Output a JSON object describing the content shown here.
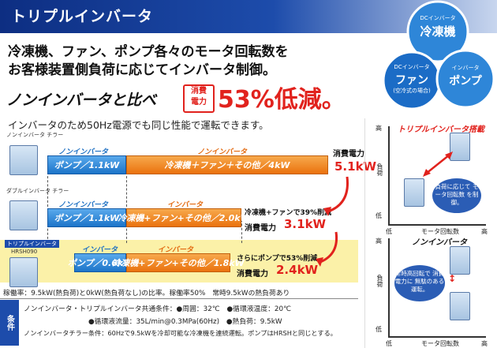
{
  "header": {
    "title": "トリプルインバータ"
  },
  "headline": {
    "line1": "冷凍機、ファン、ポンプ各々のモータ回転数を",
    "line2": "お客様装置側負荷に応じてインバータ制御。"
  },
  "comparison": {
    "lead": "ノンインバータと比べ",
    "badge_line1": "消費",
    "badge_line2": "電力",
    "percent": "53%低減。"
  },
  "subline": "インバータのため50Hz電源でも同じ性能で運転できます。",
  "circles": {
    "freezer_small": "DCインバータ",
    "freezer_main": "冷凍機",
    "fan_small": "DCインバータ",
    "fan_main": "ファン",
    "fan_note": "(空冷式の場合)",
    "pump_small": "インバータ",
    "pump_main": "ポンプ"
  },
  "rows": [
    {
      "device_label": "ノンインバータ チラー",
      "blue_top": "ノンインバータ",
      "blue_text": "ポンプ／1.1kW",
      "orange_top": "ノンインバータ",
      "orange_text": "冷凍機＋ファン＋その他／4kW",
      "power_label": "消費電力",
      "power_value": "5.1kW"
    },
    {
      "device_label": "ダブルインバータ チラー",
      "blue_top": "ノンインバータ",
      "blue_text": "ポンプ／1.1kW",
      "orange_top": "インバータ",
      "orange_text": "冷凍機+ファン+その他／2.0kW",
      "note": "冷凍機+ファンで39%削減",
      "power_label": "消費電力",
      "power_value": "3.1kW"
    },
    {
      "device_label": "トリプルインバータ",
      "device_model": "HRSH090",
      "blue_top": "インバータ",
      "blue_text": "ポンプ／0.6kW",
      "orange_top": "インバータ",
      "orange_text": "冷凍機+ファン+その他／1.8kW",
      "note": "さらにポンプで53%削減",
      "power_label": "消費電力",
      "power_value": "2.4kW"
    }
  ],
  "footnote": "稼働率：9.5kW(熱負荷)と0kW(熱負荷なし)の比率。稼働率50%　常時9.5kWの熱負荷あり",
  "conditions": {
    "label": "条件",
    "line1": "ノンインバータ・トリプルインバータ共通条件：●周囲：32℃　●循環液温度：20℃",
    "line2": "●循環液流量：35L/min@0.3MPa(60Hz)　●熱負荷：9.5kW",
    "line3": "ノンインバータチラー条件：60Hzで9.5kWを冷却可能な冷凍機を連続運転。ポンプはHRSHと同じとする。"
  },
  "right_panel": {
    "top_title": "トリプルインバータ搭載",
    "top_bubble": "負荷に応じて モータ回転数 を制御。",
    "bottom_title": "ノンインバータ",
    "bottom_bubble": "常時高回転で 消費電力に 無駄のある運転。",
    "y_high": "高",
    "y_low": "低",
    "y_axis": "負荷",
    "x_low": "低",
    "x_high": "高",
    "x_axis": "モータ回転数"
  },
  "colors": {
    "header_blue": "#1d4cab",
    "accent_red": "#e1221d",
    "bar_blue": "#1c74c9",
    "bar_orange": "#ea720e",
    "highlight_yellow": "#fbf1a8"
  }
}
